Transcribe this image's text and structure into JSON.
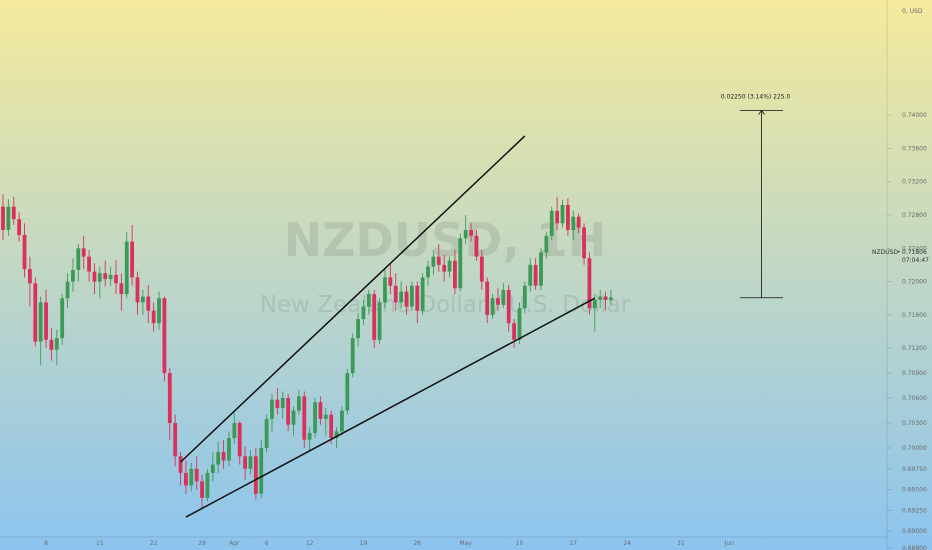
{
  "watermark": {
    "symbol": "NZDUSD, 1H",
    "name": "New Zealand Dollar / U.S. Dollar"
  },
  "price_axis": {
    "currency_label": "0, USD",
    "current_symbol": "NZDUSD",
    "current_price": "0.71806",
    "countdown": "07:04:47"
  },
  "colors": {
    "bg_top": "#f4ea9c",
    "bg_bottom": "#8cc4ef",
    "up": "#3c9a56",
    "down": "#d8315b",
    "line": "#111111"
  },
  "chart_data": {
    "type": "candlestick",
    "title": "",
    "xlabel": "",
    "ylabel": "",
    "ylim": [
      0.6881,
      0.7536
    ],
    "y_ticks": [
      "0.74000",
      "0.73600",
      "0.73200",
      "0.72800",
      "0.72400",
      "0.72000",
      "0.71600",
      "0.71200",
      "0.70900",
      "0.70600",
      "0.70300",
      "0.70000",
      "0.69750",
      "0.69500",
      "0.69250",
      "0.69000",
      "0.68800"
    ],
    "x_ticks": [
      "8",
      "15",
      "22",
      "29",
      "Apr",
      "6",
      "12",
      "19",
      "26",
      "May",
      "10",
      "17",
      "24",
      "31",
      "Jun"
    ],
    "x_tick_index": [
      8,
      18,
      28,
      37,
      43,
      49,
      57,
      67,
      77,
      86,
      96,
      106,
      116,
      126,
      135
    ],
    "candles": [
      [
        0.729,
        0.7305,
        0.725,
        0.7262
      ],
      [
        0.7262,
        0.7299,
        0.7255,
        0.729
      ],
      [
        0.729,
        0.7302,
        0.7268,
        0.7275
      ],
      [
        0.7275,
        0.7283,
        0.7248,
        0.7256
      ],
      [
        0.7256,
        0.727,
        0.7205,
        0.7215
      ],
      [
        0.7215,
        0.723,
        0.717,
        0.7198
      ],
      [
        0.7198,
        0.7205,
        0.7122,
        0.7128
      ],
      [
        0.7128,
        0.7182,
        0.71,
        0.7175
      ],
      [
        0.7175,
        0.719,
        0.712,
        0.713
      ],
      [
        0.713,
        0.7144,
        0.7105,
        0.7118
      ],
      [
        0.7118,
        0.7142,
        0.71,
        0.7132
      ],
      [
        0.7132,
        0.7185,
        0.7124,
        0.718
      ],
      [
        0.718,
        0.721,
        0.7168,
        0.72
      ],
      [
        0.72,
        0.7228,
        0.7188,
        0.7214
      ],
      [
        0.7214,
        0.7245,
        0.72,
        0.724
      ],
      [
        0.724,
        0.7255,
        0.7215,
        0.723
      ],
      [
        0.723,
        0.7238,
        0.72,
        0.7212
      ],
      [
        0.7212,
        0.7222,
        0.7185,
        0.72
      ],
      [
        0.72,
        0.7218,
        0.718,
        0.721
      ],
      [
        0.721,
        0.7225,
        0.7194,
        0.7203
      ],
      [
        0.7203,
        0.7218,
        0.7195,
        0.7208
      ],
      [
        0.7208,
        0.7226,
        0.7185,
        0.7198
      ],
      [
        0.7198,
        0.721,
        0.7165,
        0.7185
      ],
      [
        0.7185,
        0.726,
        0.718,
        0.7248
      ],
      [
        0.7248,
        0.7268,
        0.7195,
        0.7205
      ],
      [
        0.7205,
        0.7212,
        0.716,
        0.7175
      ],
      [
        0.7175,
        0.719,
        0.716,
        0.7182
      ],
      [
        0.7182,
        0.7196,
        0.715,
        0.7165
      ],
      [
        0.7165,
        0.7175,
        0.714,
        0.715
      ],
      [
        0.715,
        0.7188,
        0.7142,
        0.718
      ],
      [
        0.718,
        0.7182,
        0.708,
        0.709
      ],
      [
        0.709,
        0.7096,
        0.701,
        0.703
      ],
      [
        0.703,
        0.704,
        0.6978,
        0.699
      ],
      [
        0.699,
        0.6995,
        0.6955,
        0.697
      ],
      [
        0.697,
        0.6985,
        0.6945,
        0.6955
      ],
      [
        0.6955,
        0.6982,
        0.6948,
        0.6975
      ],
      [
        0.6975,
        0.699,
        0.695,
        0.696
      ],
      [
        0.696,
        0.6968,
        0.6928,
        0.694
      ],
      [
        0.694,
        0.6975,
        0.6936,
        0.697
      ],
      [
        0.697,
        0.6995,
        0.696,
        0.698
      ],
      [
        0.698,
        0.7008,
        0.697,
        0.6995
      ],
      [
        0.6995,
        0.701,
        0.6975,
        0.6985
      ],
      [
        0.6985,
        0.702,
        0.6978,
        0.7012
      ],
      [
        0.7012,
        0.7042,
        0.7005,
        0.703
      ],
      [
        0.703,
        0.7032,
        0.698,
        0.699
      ],
      [
        0.699,
        0.7002,
        0.6962,
        0.6975
      ],
      [
        0.6975,
        0.6998,
        0.6968,
        0.699
      ],
      [
        0.699,
        0.7,
        0.6938,
        0.6945
      ],
      [
        0.6945,
        0.701,
        0.694,
        0.7
      ],
      [
        0.7,
        0.704,
        0.6995,
        0.7035
      ],
      [
        0.7035,
        0.7065,
        0.702,
        0.7058
      ],
      [
        0.7058,
        0.7072,
        0.704,
        0.7048
      ],
      [
        0.7048,
        0.7068,
        0.7035,
        0.706
      ],
      [
        0.706,
        0.7065,
        0.702,
        0.7028
      ],
      [
        0.7028,
        0.705,
        0.7015,
        0.7045
      ],
      [
        0.7045,
        0.707,
        0.704,
        0.7062
      ],
      [
        0.7062,
        0.7068,
        0.7,
        0.701
      ],
      [
        0.701,
        0.7025,
        0.6995,
        0.7018
      ],
      [
        0.7018,
        0.706,
        0.7012,
        0.7055
      ],
      [
        0.7055,
        0.7062,
        0.7028,
        0.7035
      ],
      [
        0.7035,
        0.7048,
        0.7015,
        0.704
      ],
      [
        0.704,
        0.7045,
        0.7005,
        0.7012
      ],
      [
        0.7012,
        0.7025,
        0.7,
        0.702
      ],
      [
        0.702,
        0.705,
        0.7015,
        0.7045
      ],
      [
        0.7045,
        0.7095,
        0.704,
        0.709
      ],
      [
        0.709,
        0.7138,
        0.7085,
        0.7132
      ],
      [
        0.7132,
        0.7162,
        0.7122,
        0.7155
      ],
      [
        0.7155,
        0.7178,
        0.7148,
        0.717
      ],
      [
        0.717,
        0.719,
        0.716,
        0.7185
      ],
      [
        0.7185,
        0.719,
        0.712,
        0.713
      ],
      [
        0.713,
        0.718,
        0.7125,
        0.7175
      ],
      [
        0.7175,
        0.7215,
        0.7168,
        0.7205
      ],
      [
        0.7205,
        0.7222,
        0.7185,
        0.7195
      ],
      [
        0.7195,
        0.721,
        0.7165,
        0.7175
      ],
      [
        0.7175,
        0.72,
        0.7168,
        0.7188
      ],
      [
        0.7188,
        0.7195,
        0.716,
        0.717
      ],
      [
        0.717,
        0.72,
        0.7165,
        0.7195
      ],
      [
        0.7195,
        0.72,
        0.715,
        0.7165
      ],
      [
        0.7165,
        0.721,
        0.716,
        0.7205
      ],
      [
        0.7205,
        0.7225,
        0.7195,
        0.7218
      ],
      [
        0.7218,
        0.7238,
        0.7208,
        0.723
      ],
      [
        0.723,
        0.7245,
        0.7212,
        0.722
      ],
      [
        0.722,
        0.7232,
        0.72,
        0.7212
      ],
      [
        0.7212,
        0.723,
        0.7205,
        0.7225
      ],
      [
        0.7225,
        0.7238,
        0.7185,
        0.7192
      ],
      [
        0.7192,
        0.7258,
        0.7188,
        0.7252
      ],
      [
        0.7252,
        0.728,
        0.7245,
        0.7262
      ],
      [
        0.7262,
        0.727,
        0.7248,
        0.7255
      ],
      [
        0.7255,
        0.7262,
        0.7225,
        0.723
      ],
      [
        0.723,
        0.7238,
        0.719,
        0.72
      ],
      [
        0.72,
        0.7205,
        0.715,
        0.716
      ],
      [
        0.716,
        0.7185,
        0.7155,
        0.718
      ],
      [
        0.718,
        0.7192,
        0.7165,
        0.7172
      ],
      [
        0.7172,
        0.7198,
        0.7168,
        0.719
      ],
      [
        0.719,
        0.7196,
        0.714,
        0.715
      ],
      [
        0.715,
        0.7155,
        0.712,
        0.713
      ],
      [
        0.713,
        0.7175,
        0.7125,
        0.7168
      ],
      [
        0.7168,
        0.72,
        0.7162,
        0.7195
      ],
      [
        0.7195,
        0.7228,
        0.7188,
        0.722
      ],
      [
        0.722,
        0.7228,
        0.719,
        0.7195
      ],
      [
        0.7195,
        0.724,
        0.719,
        0.7235
      ],
      [
        0.7235,
        0.726,
        0.7228,
        0.7255
      ],
      [
        0.7255,
        0.729,
        0.725,
        0.7285
      ],
      [
        0.7285,
        0.7302,
        0.7262,
        0.727
      ],
      [
        0.727,
        0.7298,
        0.7265,
        0.7292
      ],
      [
        0.7292,
        0.73,
        0.7255,
        0.7262
      ],
      [
        0.7262,
        0.7285,
        0.725,
        0.7278
      ],
      [
        0.7278,
        0.7282,
        0.7258,
        0.7265
      ],
      [
        0.7265,
        0.727,
        0.722,
        0.7228
      ],
      [
        0.7228,
        0.7235,
        0.716,
        0.7168
      ],
      [
        0.7168,
        0.7185,
        0.714,
        0.7178
      ],
      [
        0.7178,
        0.719,
        0.7168,
        0.7182
      ],
      [
        0.7182,
        0.7188,
        0.7165,
        0.7178
      ],
      [
        0.7178,
        0.719,
        0.7172,
        0.7181
      ]
    ],
    "trendlines": [
      {
        "from": [
          33,
          0.6983
        ],
        "to": [
          97,
          0.7375
        ]
      },
      {
        "from": [
          34,
          0.6917
        ],
        "to": [
          110,
          0.718
        ]
      }
    ],
    "measure": {
      "label": "0.02250 (3.14%) 225.0",
      "from": 0.71806,
      "to": 0.74056
    }
  }
}
